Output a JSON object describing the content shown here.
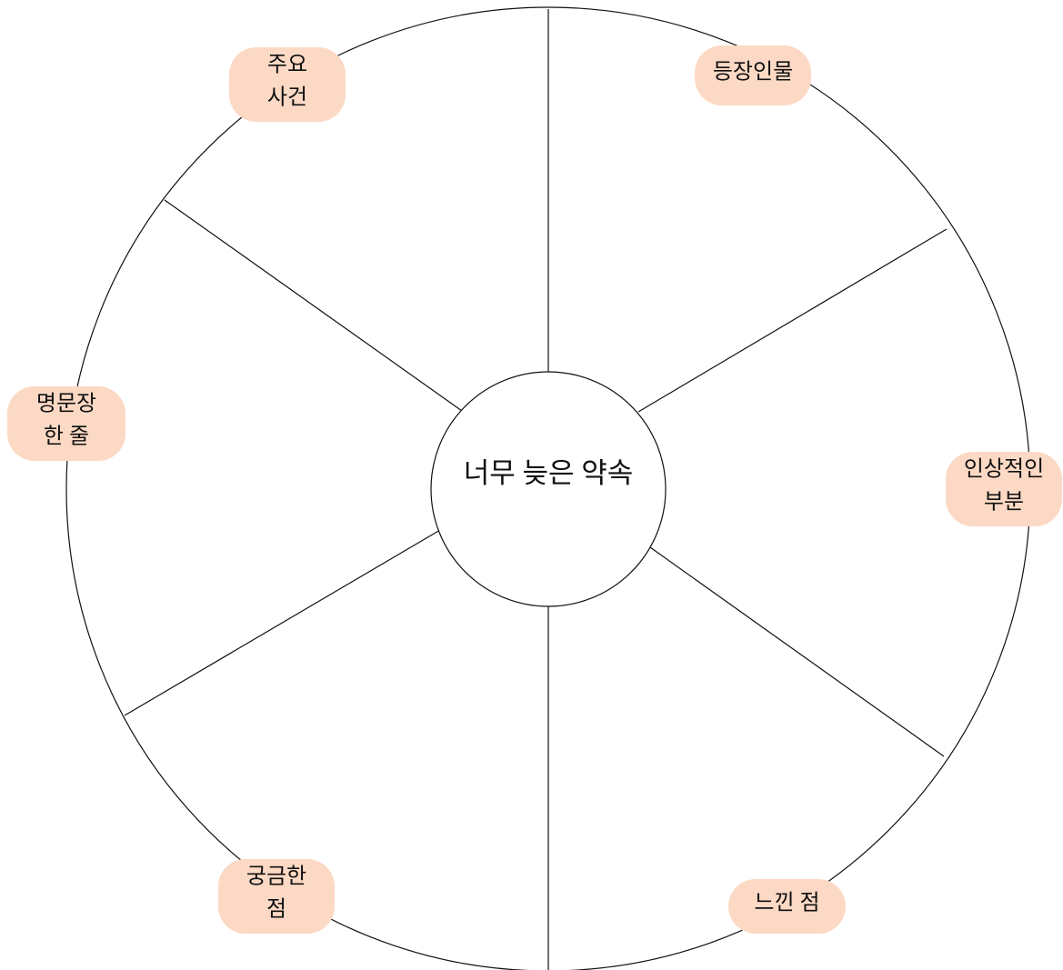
{
  "diagram": {
    "center": {
      "title": "너무 늦은 약속"
    },
    "labels": [
      {
        "lines": [
          "주요",
          "사건"
        ]
      },
      {
        "lines": [
          "등장인물"
        ]
      },
      {
        "lines": [
          "명문장",
          "한 줄"
        ]
      },
      {
        "lines": [
          "인상적인",
          "부분"
        ]
      },
      {
        "lines": [
          "궁금한",
          "점"
        ]
      },
      {
        "lines": [
          "느낀 점"
        ]
      }
    ]
  }
}
